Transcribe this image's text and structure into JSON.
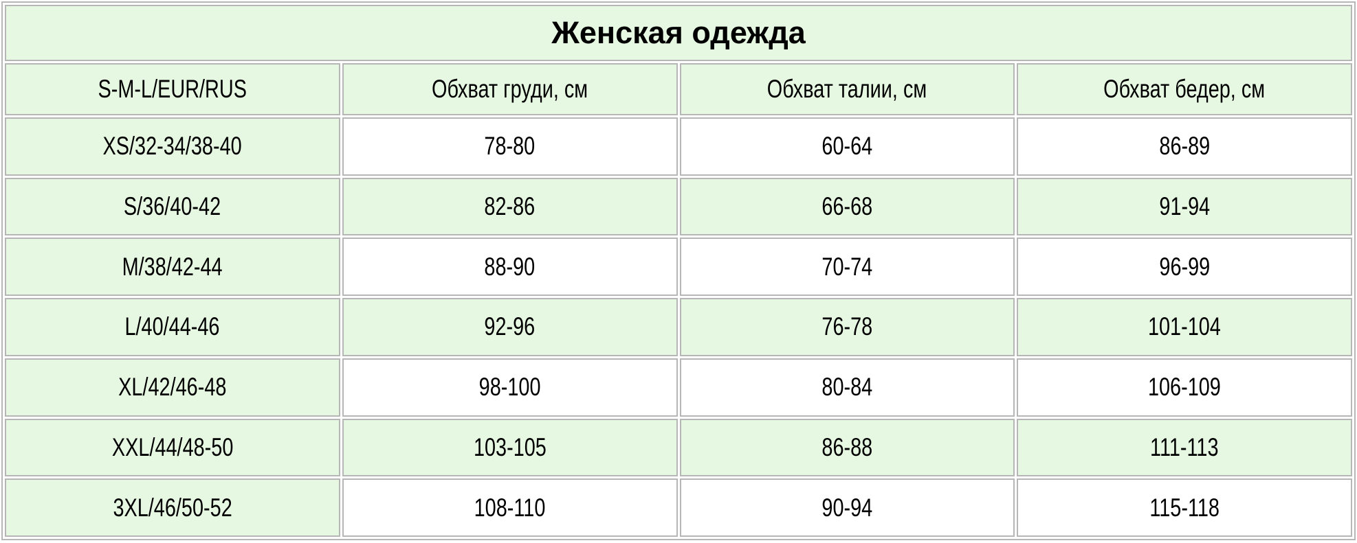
{
  "chart_data": {
    "type": "table",
    "title": "Женская одежда",
    "columns": [
      "S-M-L/EUR/RUS",
      "Обхват груди, см",
      "Обхват талии, см",
      "Обхват бедер, см"
    ],
    "rows": [
      [
        "XS/32-34/38-40",
        "78-80",
        "60-64",
        "86-89"
      ],
      [
        "S/36/40-42",
        "82-86",
        "66-68",
        "91-94"
      ],
      [
        "M/38/42-44",
        "88-90",
        "70-74",
        "96-99"
      ],
      [
        "L/40/44-46",
        "92-96",
        "76-78",
        "101-104"
      ],
      [
        "XL/42/46-48",
        "98-100",
        "80-84",
        "106-109"
      ],
      [
        "XXL/44/48-50",
        "103-105",
        "86-88",
        "111-113"
      ],
      [
        "3XL/46/50-52",
        "108-110",
        "90-94",
        "115-118"
      ]
    ],
    "layout_hints": {
      "title_row_spans_all_columns": true,
      "first_column_always_green": true,
      "data_rows_alternate": "white, green, white, green, white, green, white"
    }
  },
  "colors": {
    "cell_green": "#e6f8e2",
    "cell_white": "#ffffff",
    "border_gray": "#b6b6b6",
    "text": "#000000"
  }
}
